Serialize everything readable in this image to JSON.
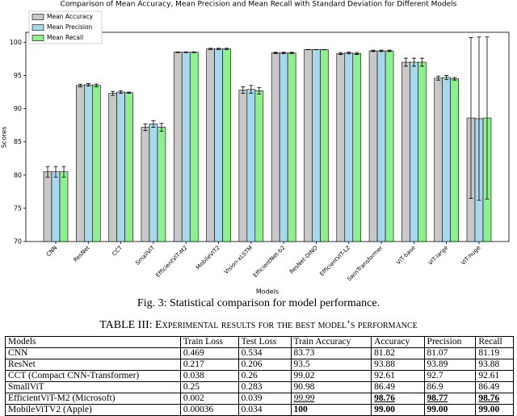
{
  "chart_data": {
    "type": "bar",
    "title": "Comparison of Mean Accuracy, Mean Precision and Mean Recall with Standard Deviation for Different Models",
    "xlabel": "Models",
    "ylabel": "Scores",
    "categories": [
      "CNN",
      "ResNet",
      "CCT",
      "SmallViT",
      "EfficientViT-M2",
      "MobileViT2",
      "Vision-xLSTM",
      "EfficientNet-b2",
      "ResNet-DINO",
      "EfficientViT-L2",
      "SwinTransformer",
      "ViT-base",
      "ViT-large",
      "ViT-huge"
    ],
    "series": [
      {
        "name": "Mean Accuracy",
        "color": "#c8c8c8",
        "values": [
          80.5,
          93.5,
          92.3,
          87.2,
          98.5,
          99.0,
          92.8,
          98.4,
          98.9,
          98.3,
          98.7,
          97.0,
          94.6,
          88.6
        ],
        "errors": [
          0.8,
          0.2,
          0.3,
          0.5,
          0.05,
          0.1,
          0.5,
          0.1,
          0.02,
          0.15,
          0.1,
          0.6,
          0.3,
          12.1
        ]
      },
      {
        "name": "Mean Precision",
        "color": "#a8d8ea",
        "values": [
          80.5,
          93.6,
          92.5,
          87.7,
          98.5,
          99.0,
          92.9,
          98.4,
          98.9,
          98.4,
          98.7,
          97.0,
          94.7,
          88.5
        ],
        "errors": [
          0.8,
          0.2,
          0.2,
          0.5,
          0.05,
          0.1,
          0.6,
          0.1,
          0.02,
          0.15,
          0.1,
          0.6,
          0.3,
          12.3
        ]
      },
      {
        "name": "Mean Recall",
        "color": "#90ee90",
        "values": [
          80.5,
          93.5,
          92.4,
          87.2,
          98.5,
          99.0,
          92.7,
          98.4,
          98.9,
          98.3,
          98.7,
          97.0,
          94.5,
          88.6
        ],
        "errors": [
          0.8,
          0.2,
          0.1,
          0.6,
          0.05,
          0.1,
          0.5,
          0.1,
          0.02,
          0.15,
          0.1,
          0.6,
          0.2,
          12.2
        ]
      }
    ],
    "ylim": [
      70,
      101.5
    ],
    "yticks": [
      70,
      75,
      80,
      85,
      90,
      95,
      100
    ],
    "legend": "upper left"
  },
  "caption": "Fig. 3: Statistical comparison for model performance.",
  "table": {
    "title": "TABLE III: Experimental results for the best model’s performance",
    "header": [
      "Models",
      "Train Loss",
      "Test Loss",
      "Train Accuracy",
      "Accuracy",
      "Precision",
      "Recall"
    ],
    "rows": [
      [
        "CNN",
        "0.469",
        "0.534",
        "83.73",
        "81.82",
        "81.07",
        "81.19"
      ],
      [
        "ResNet",
        "0.217",
        "0.206",
        "93.5",
        "93.88",
        "93.89",
        "93.88"
      ],
      [
        "CCT (Compact CNN-Transformer)",
        "0.038",
        "0.26",
        "99.02",
        "92.61",
        "92.7",
        "92.61"
      ],
      [
        "SmallViT",
        "0.25",
        "0.283",
        "90.98",
        "86.49",
        "86.9",
        "86.49"
      ],
      [
        "EfficientViT-M2 (Microsoft)",
        "0.002",
        "0.039",
        "99.99",
        "98.76",
        "98.77",
        "98.76"
      ],
      [
        "MobileViTV2 (Apple)",
        "0.00036",
        "0.034",
        "100",
        "99.00",
        "99.00",
        "99.00"
      ]
    ]
  }
}
